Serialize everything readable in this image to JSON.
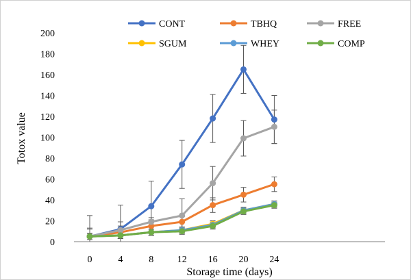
{
  "chart_data": {
    "type": "line",
    "title": "",
    "xlabel": "Storage time (days)",
    "ylabel": "Totox value",
    "x": [
      0,
      4,
      8,
      12,
      16,
      20,
      24
    ],
    "ylim": [
      0,
      200
    ],
    "yticks": [
      0,
      20,
      40,
      60,
      80,
      100,
      120,
      140,
      160,
      180,
      200
    ],
    "grid": false,
    "legend_position": "top",
    "series": [
      {
        "name": "CONT",
        "color": "#4472C4",
        "values": [
          5,
          12,
          34,
          74,
          118,
          165,
          117
        ],
        "errors": [
          20,
          23,
          24,
          23,
          23,
          23,
          23
        ]
      },
      {
        "name": "TBHQ",
        "color": "#ED7D31",
        "values": [
          5,
          9,
          15,
          19,
          35,
          45,
          55
        ],
        "errors": [
          7,
          6,
          6,
          5,
          7,
          7,
          7
        ]
      },
      {
        "name": "FREE",
        "color": "#A5A5A5",
        "values": [
          5,
          11,
          19,
          25,
          56,
          99,
          110
        ],
        "errors": [
          8,
          8,
          4,
          16,
          16,
          17,
          16
        ]
      },
      {
        "name": "SGUM",
        "color": "#FFC000",
        "values": [
          5,
          6,
          9,
          11,
          17,
          30,
          36
        ],
        "errors": [
          3,
          3,
          3,
          3,
          3,
          3,
          3
        ]
      },
      {
        "name": "WHEY",
        "color": "#5B9BD5",
        "values": [
          5,
          6,
          9,
          11,
          16,
          30,
          36
        ],
        "errors": [
          3,
          3,
          3,
          3,
          3,
          3,
          3
        ]
      },
      {
        "name": "COMP",
        "color": "#70AD47",
        "values": [
          5,
          6,
          9,
          10,
          15,
          29,
          35
        ],
        "errors": [
          3,
          3,
          3,
          3,
          3,
          3,
          3
        ]
      }
    ]
  }
}
